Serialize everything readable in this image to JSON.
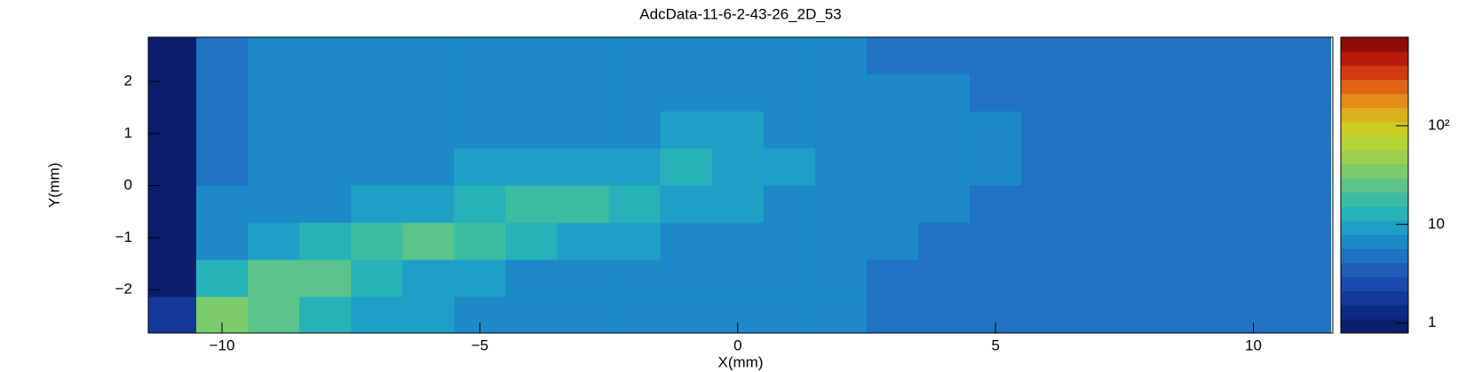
{
  "chart_data": {
    "type": "heatmap",
    "title": "AdcData-11-6-2-43-26_2D_53",
    "x_label": "X(mm)",
    "y_label": "Y(mm)",
    "x_edges": [
      -11.5,
      -10.5,
      -9.5,
      -8.5,
      -7.5,
      -6.5,
      -5.5,
      -4.5,
      -3.5,
      -2.5,
      -1.5,
      -0.5,
      0.5,
      1.5,
      2.5,
      3.5,
      4.5,
      5.5,
      6.5,
      7.5,
      8.5,
      9.5,
      10.5,
      11.5
    ],
    "y_edges": [
      2.85,
      2.1375,
      1.425,
      0.7125,
      0,
      -0.7125,
      -1.425,
      -2.1375,
      -2.85
    ],
    "values": [
      [
        1,
        5,
        6,
        6,
        6,
        6,
        6,
        6,
        6,
        6,
        6,
        6,
        6,
        6,
        5,
        5,
        5,
        5,
        5,
        5,
        5,
        5,
        5
      ],
      [
        1,
        5,
        6,
        6,
        6,
        6,
        6,
        6,
        7,
        7,
        7,
        6,
        6,
        6,
        6,
        6,
        5,
        5,
        5,
        5,
        5,
        5,
        5
      ],
      [
        1,
        5,
        6,
        6,
        6,
        6,
        7,
        7,
        7,
        7,
        8,
        8,
        7,
        7,
        6,
        6,
        6,
        5,
        5,
        5,
        5,
        5,
        5
      ],
      [
        1,
        5,
        6,
        6,
        6,
        7,
        8,
        8,
        9,
        10,
        12,
        10,
        8,
        7,
        6,
        6,
        6,
        5,
        5,
        5,
        5,
        5,
        5
      ],
      [
        1,
        6,
        7,
        7,
        8,
        10,
        14,
        20,
        16,
        12,
        9,
        8,
        7,
        6,
        6,
        6,
        5,
        5,
        5,
        5,
        5,
        5,
        5
      ],
      [
        1,
        7,
        9,
        14,
        20,
        22,
        16,
        11,
        9,
        8,
        7,
        6,
        6,
        6,
        6,
        5,
        5,
        5,
        5,
        5,
        5,
        5,
        5
      ],
      [
        1,
        14,
        26,
        22,
        14,
        10,
        8,
        7,
        7,
        6,
        6,
        6,
        6,
        6,
        5,
        5,
        5,
        5,
        5,
        5,
        5,
        5,
        5
      ],
      [
        2,
        35,
        24,
        12,
        9,
        8,
        7,
        6,
        6,
        6,
        6,
        6,
        6,
        6,
        5,
        5,
        5,
        5,
        5,
        5,
        5,
        5,
        5
      ]
    ],
    "xlim": [
      -11.43,
      11.54
    ],
    "ylim": [
      -2.83,
      2.85
    ],
    "xticks": [
      {
        "value": -10,
        "label": "−10"
      },
      {
        "value": -5,
        "label": "−5"
      },
      0,
      5,
      10
    ],
    "yticks": [
      {
        "value": -2,
        "label": "−2"
      },
      {
        "value": -1,
        "label": "−1"
      },
      0,
      1,
      2
    ],
    "zlim": [
      0.79,
      790
    ],
    "zlog": true,
    "zticks": [
      1,
      10,
      {
        "value": 100,
        "label": "10²"
      }
    ],
    "palette": [
      "#0b1e6e",
      "#0c2a84",
      "#13389a",
      "#1a4aac",
      "#1e5db8",
      "#1f73c2",
      "#1d89c8",
      "#1ea0c6",
      "#26b2b8",
      "#3cbda3",
      "#5ac48a",
      "#7ccb6c",
      "#9bd04e",
      "#b6d335",
      "#cccc22",
      "#dcb01c",
      "#e38c18",
      "#e06414",
      "#d23a10",
      "#b81a0c",
      "#8e0a06"
    ]
  }
}
